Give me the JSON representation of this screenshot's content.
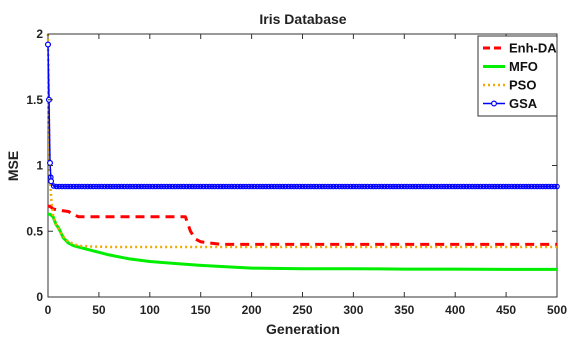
{
  "chart_data": {
    "type": "line",
    "title": "Iris Database",
    "xlabel": "Generation",
    "ylabel": "MSE",
    "xlim": [
      0,
      500
    ],
    "ylim": [
      0,
      2
    ],
    "xticks": [
      "0",
      "50",
      "100",
      "150",
      "200",
      "250",
      "300",
      "350",
      "400",
      "450",
      "500"
    ],
    "yticks": [
      "0",
      "0.5",
      "1",
      "1.5",
      "2"
    ],
    "grid": false,
    "legend_position": "top-right",
    "series": [
      {
        "name": "Enh-DA",
        "color": "#ff0000",
        "style": "dashed",
        "x": [
          0,
          2,
          5,
          10,
          20,
          25,
          30,
          40,
          60,
          80,
          100,
          120,
          135,
          140,
          145,
          150,
          160,
          170,
          200,
          250,
          300,
          350,
          400,
          450,
          500
        ],
        "y": [
          0.69,
          0.69,
          0.67,
          0.66,
          0.65,
          0.63,
          0.61,
          0.61,
          0.61,
          0.61,
          0.61,
          0.61,
          0.61,
          0.5,
          0.44,
          0.42,
          0.41,
          0.4,
          0.4,
          0.4,
          0.4,
          0.4,
          0.4,
          0.4,
          0.4
        ]
      },
      {
        "name": "MFO",
        "color": "#00ee00",
        "style": "solid",
        "x": [
          0,
          2,
          5,
          8,
          10,
          12,
          15,
          20,
          25,
          30,
          40,
          50,
          60,
          80,
          100,
          125,
          150,
          175,
          200,
          250,
          300,
          350,
          400,
          450,
          500
        ],
        "y": [
          0.63,
          0.63,
          0.61,
          0.55,
          0.53,
          0.5,
          0.45,
          0.41,
          0.39,
          0.38,
          0.36,
          0.34,
          0.32,
          0.29,
          0.27,
          0.255,
          0.24,
          0.23,
          0.22,
          0.215,
          0.215,
          0.212,
          0.212,
          0.21,
          0.21
        ]
      },
      {
        "name": "PSO",
        "color": "#f2a900",
        "style": "dotted",
        "x": [
          0,
          1,
          2,
          3,
          5,
          8,
          10,
          15,
          20,
          30,
          40,
          60,
          80,
          100,
          150,
          200,
          250,
          300,
          350,
          400,
          450,
          500
        ],
        "y": [
          2.0,
          1.3,
          0.9,
          0.76,
          0.62,
          0.55,
          0.52,
          0.46,
          0.42,
          0.39,
          0.385,
          0.38,
          0.38,
          0.38,
          0.38,
          0.38,
          0.38,
          0.38,
          0.38,
          0.38,
          0.38,
          0.38
        ]
      },
      {
        "name": "GSA",
        "color": "#0000ff",
        "style": "solid-circle",
        "x": [
          0,
          1,
          2,
          3,
          4,
          5,
          6,
          8,
          10,
          15,
          20,
          50,
          100,
          150,
          200,
          250,
          300,
          350,
          400,
          450,
          500
        ],
        "y": [
          1.92,
          1.5,
          1.02,
          0.88,
          0.86,
          0.85,
          0.84,
          0.84,
          0.84,
          0.84,
          0.84,
          0.84,
          0.84,
          0.84,
          0.84,
          0.84,
          0.84,
          0.84,
          0.84,
          0.84,
          0.84
        ]
      }
    ]
  }
}
